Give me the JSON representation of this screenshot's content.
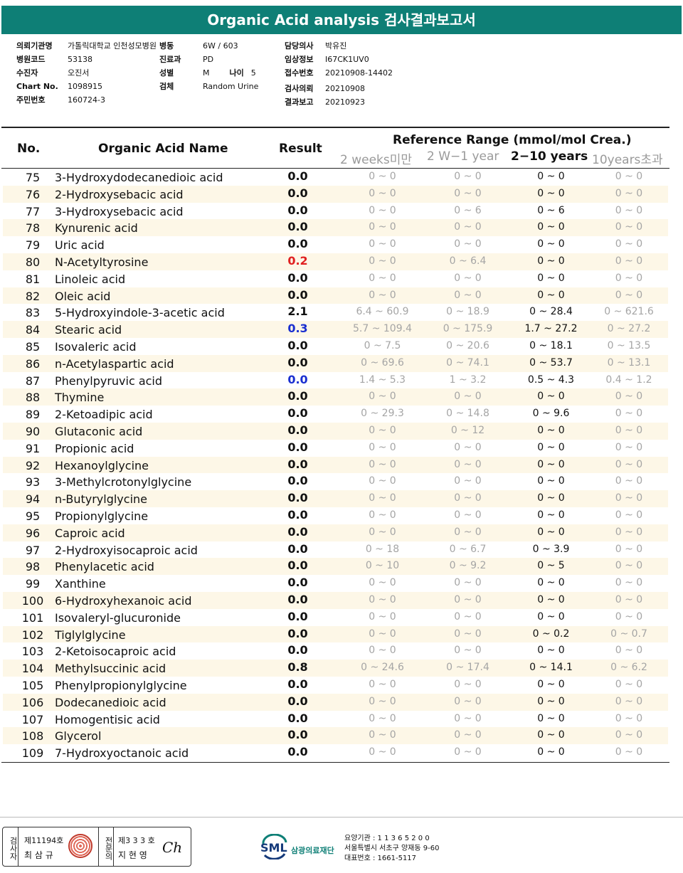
{
  "title": "Organic Acid analysis 검사결과보고서",
  "info": {
    "col_a": [
      {
        "label": "의뢰기관명",
        "value": "가톨릭대학교 인천성모병원"
      },
      {
        "label": "병원코드",
        "value": "53138"
      },
      {
        "label": "수진자",
        "value": "오진서"
      },
      {
        "label": "Chart No.",
        "value": "1098915"
      },
      {
        "label": "주민번호",
        "value": "160724-3"
      }
    ],
    "col_b": [
      {
        "label": "병동",
        "value": "6W / 603"
      },
      {
        "label": "진료과",
        "value": "PD"
      },
      {
        "label": "성별",
        "value": "M"
      },
      {
        "label": "검체",
        "value": "Random Urine"
      }
    ],
    "age_label": "나이",
    "age_value": "5",
    "col_c": [
      {
        "label": "담당의사",
        "value": "박유진"
      },
      {
        "label": "임상정보",
        "value": "I67CK1UV0"
      },
      {
        "label": "접수번호",
        "value": "20210908-14402"
      },
      {
        "label": "검사의뢰",
        "value": "20210908"
      },
      {
        "label": "결과보고",
        "value": "20210923"
      }
    ]
  },
  "table": {
    "headers": {
      "no": "No.",
      "name": "Organic Acid Name",
      "result": "Result",
      "reference": "Reference Range (mmol/mol Crea.)",
      "ranges": [
        "2 weeks미만",
        "2 W−1 year",
        "2−10 years",
        "10years초과"
      ]
    },
    "rows": [
      {
        "no": "75",
        "name": "3-Hydroxydodecanedioic acid",
        "result": "0.0",
        "flag": "",
        "r": [
          "0 ~ 0",
          "0 ~ 0",
          "0 ~ 0",
          "0 ~ 0"
        ]
      },
      {
        "no": "76",
        "name": "2-Hydroxysebacic acid",
        "result": "0.0",
        "flag": "",
        "r": [
          "0 ~ 0",
          "0 ~ 0",
          "0 ~ 0",
          "0 ~ 0"
        ]
      },
      {
        "no": "77",
        "name": "3-Hydroxysebacic acid",
        "result": "0.0",
        "flag": "",
        "r": [
          "0 ~ 0",
          "0 ~ 6",
          "0 ~ 6",
          "0 ~ 0"
        ]
      },
      {
        "no": "78",
        "name": "Kynurenic acid",
        "result": "0.0",
        "flag": "",
        "r": [
          "0 ~ 0",
          "0 ~ 0",
          "0 ~ 0",
          "0 ~ 0"
        ]
      },
      {
        "no": "79",
        "name": "Uric acid",
        "result": "0.0",
        "flag": "",
        "r": [
          "0 ~ 0",
          "0 ~ 0",
          "0 ~ 0",
          "0 ~ 0"
        ]
      },
      {
        "no": "80",
        "name": "N-Acetyltyrosine",
        "result": "0.2",
        "flag": "high",
        "r": [
          "0 ~ 0",
          "0 ~ 6.4",
          "0 ~ 0",
          "0 ~ 0"
        ]
      },
      {
        "no": "81",
        "name": "Linoleic acid",
        "result": "0.0",
        "flag": "",
        "r": [
          "0 ~ 0",
          "0 ~ 0",
          "0 ~ 0",
          "0 ~ 0"
        ]
      },
      {
        "no": "82",
        "name": "Oleic acid",
        "result": "0.0",
        "flag": "",
        "r": [
          "0 ~ 0",
          "0 ~ 0",
          "0 ~ 0",
          "0 ~ 0"
        ]
      },
      {
        "no": "83",
        "name": "5-Hydroxyindole-3-acetic acid",
        "result": "2.1",
        "flag": "",
        "r": [
          "6.4 ~ 60.9",
          "0 ~ 18.9",
          "0 ~ 28.4",
          "0 ~ 621.6"
        ]
      },
      {
        "no": "84",
        "name": "Stearic acid",
        "result": "0.3",
        "flag": "low",
        "r": [
          "5.7 ~ 109.4",
          "0 ~ 175.9",
          "1.7 ~ 27.2",
          "0 ~ 27.2"
        ]
      },
      {
        "no": "85",
        "name": "Isovaleric acid",
        "result": "0.0",
        "flag": "",
        "r": [
          "0 ~ 7.5",
          "0 ~ 20.6",
          "0 ~ 18.1",
          "0 ~ 13.5"
        ]
      },
      {
        "no": "86",
        "name": "n-Acetylaspartic acid",
        "result": "0.0",
        "flag": "",
        "r": [
          "0 ~ 69.6",
          "0 ~ 74.1",
          "0 ~ 53.7",
          "0 ~ 13.1"
        ]
      },
      {
        "no": "87",
        "name": "Phenylpyruvic acid",
        "result": "0.0",
        "flag": "low",
        "r": [
          "1.4 ~ 5.3",
          "1 ~ 3.2",
          "0.5 ~ 4.3",
          "0.4 ~ 1.2"
        ]
      },
      {
        "no": "88",
        "name": "Thymine",
        "result": "0.0",
        "flag": "",
        "r": [
          "0 ~ 0",
          "0 ~ 0",
          "0 ~ 0",
          "0 ~ 0"
        ]
      },
      {
        "no": "89",
        "name": "2-Ketoadipic acid",
        "result": "0.0",
        "flag": "",
        "r": [
          "0 ~ 29.3",
          "0 ~ 14.8",
          "0 ~ 9.6",
          "0 ~ 0"
        ]
      },
      {
        "no": "90",
        "name": "Glutaconic acid",
        "result": "0.0",
        "flag": "",
        "r": [
          "0 ~ 0",
          "0 ~ 12",
          "0 ~ 0",
          "0 ~ 0"
        ]
      },
      {
        "no": "91",
        "name": "Propionic acid",
        "result": "0.0",
        "flag": "",
        "r": [
          "0 ~ 0",
          "0 ~ 0",
          "0 ~ 0",
          "0 ~ 0"
        ]
      },
      {
        "no": "92",
        "name": "Hexanoylglycine",
        "result": "0.0",
        "flag": "",
        "r": [
          "0 ~ 0",
          "0 ~ 0",
          "0 ~ 0",
          "0 ~ 0"
        ]
      },
      {
        "no": "93",
        "name": "3-Methylcrotonylglycine",
        "result": "0.0",
        "flag": "",
        "r": [
          "0 ~ 0",
          "0 ~ 0",
          "0 ~ 0",
          "0 ~ 0"
        ]
      },
      {
        "no": "94",
        "name": "n-Butyrylglycine",
        "result": "0.0",
        "flag": "",
        "r": [
          "0 ~ 0",
          "0 ~ 0",
          "0 ~ 0",
          "0 ~ 0"
        ]
      },
      {
        "no": "95",
        "name": "Propionylglycine",
        "result": "0.0",
        "flag": "",
        "r": [
          "0 ~ 0",
          "0 ~ 0",
          "0 ~ 0",
          "0 ~ 0"
        ]
      },
      {
        "no": "96",
        "name": "Caproic acid",
        "result": "0.0",
        "flag": "",
        "r": [
          "0 ~ 0",
          "0 ~ 0",
          "0 ~ 0",
          "0 ~ 0"
        ]
      },
      {
        "no": "97",
        "name": "2-Hydroxyisocaproic acid",
        "result": "0.0",
        "flag": "",
        "r": [
          "0 ~ 18",
          "0 ~ 6.7",
          "0 ~ 3.9",
          "0 ~ 0"
        ]
      },
      {
        "no": "98",
        "name": "Phenylacetic acid",
        "result": "0.0",
        "flag": "",
        "r": [
          "0 ~ 10",
          "0 ~ 9.2",
          "0 ~ 5",
          "0 ~ 0"
        ]
      },
      {
        "no": "99",
        "name": "Xanthine",
        "result": "0.0",
        "flag": "",
        "r": [
          "0 ~ 0",
          "0 ~ 0",
          "0 ~ 0",
          "0 ~ 0"
        ]
      },
      {
        "no": "100",
        "name": "6-Hydroxyhexanoic acid",
        "result": "0.0",
        "flag": "",
        "r": [
          "0 ~ 0",
          "0 ~ 0",
          "0 ~ 0",
          "0 ~ 0"
        ]
      },
      {
        "no": "101",
        "name": "Isovaleryl-glucuronide",
        "result": "0.0",
        "flag": "",
        "r": [
          "0 ~ 0",
          "0 ~ 0",
          "0 ~ 0",
          "0 ~ 0"
        ]
      },
      {
        "no": "102",
        "name": "Tiglylglycine",
        "result": "0.0",
        "flag": "",
        "r": [
          "0 ~ 0",
          "0 ~ 0",
          "0 ~ 0.2",
          "0 ~ 0.7"
        ]
      },
      {
        "no": "103",
        "name": "2-Ketoisocaproic acid",
        "result": "0.0",
        "flag": "",
        "r": [
          "0 ~ 0",
          "0 ~ 0",
          "0 ~ 0",
          "0 ~ 0"
        ]
      },
      {
        "no": "104",
        "name": "Methylsuccinic acid",
        "result": "0.8",
        "flag": "",
        "r": [
          "0 ~ 24.6",
          "0 ~ 17.4",
          "0 ~ 14.1",
          "0 ~ 6.2"
        ]
      },
      {
        "no": "105",
        "name": "Phenylpropionylglycine",
        "result": "0.0",
        "flag": "",
        "r": [
          "0 ~ 0",
          "0 ~ 0",
          "0 ~ 0",
          "0 ~ 0"
        ]
      },
      {
        "no": "106",
        "name": "Dodecanedioic acid",
        "result": "0.0",
        "flag": "",
        "r": [
          "0 ~ 0",
          "0 ~ 0",
          "0 ~ 0",
          "0 ~ 0"
        ]
      },
      {
        "no": "107",
        "name": "Homogentisic acid",
        "result": "0.0",
        "flag": "",
        "r": [
          "0 ~ 0",
          "0 ~ 0",
          "0 ~ 0",
          "0 ~ 0"
        ]
      },
      {
        "no": "108",
        "name": "Glycerol",
        "result": "0.0",
        "flag": "",
        "r": [
          "0 ~ 0",
          "0 ~ 0",
          "0 ~ 0",
          "0 ~ 0"
        ]
      },
      {
        "no": "109",
        "name": "7-Hydroxyoctanoic acid",
        "result": "0.0",
        "flag": "",
        "r": [
          "0 ~ 0",
          "0 ~ 0",
          "0 ~ 0",
          "0 ~ 0"
        ]
      }
    ]
  },
  "colors": {
    "high": "#e02020",
    "low": "#1a2fd0",
    "brand": "#0e7f76"
  },
  "footer": {
    "examiner_label": "검사자",
    "examiner_license": "제11194호",
    "examiner_name": "최 삼 규",
    "specialist_label": "전문의",
    "specialist_license": "제3 3 3 호",
    "specialist_name": "지 현 영",
    "signature": "Ch",
    "logo_text": "SML",
    "foundation": "삼광의료재단",
    "address_lines": [
      "요양기관 : 1 1 3 6 5 2 0 0",
      "서울특별시 서초구 양재동 9-60",
      "대표번호 : 1661-5117"
    ]
  }
}
